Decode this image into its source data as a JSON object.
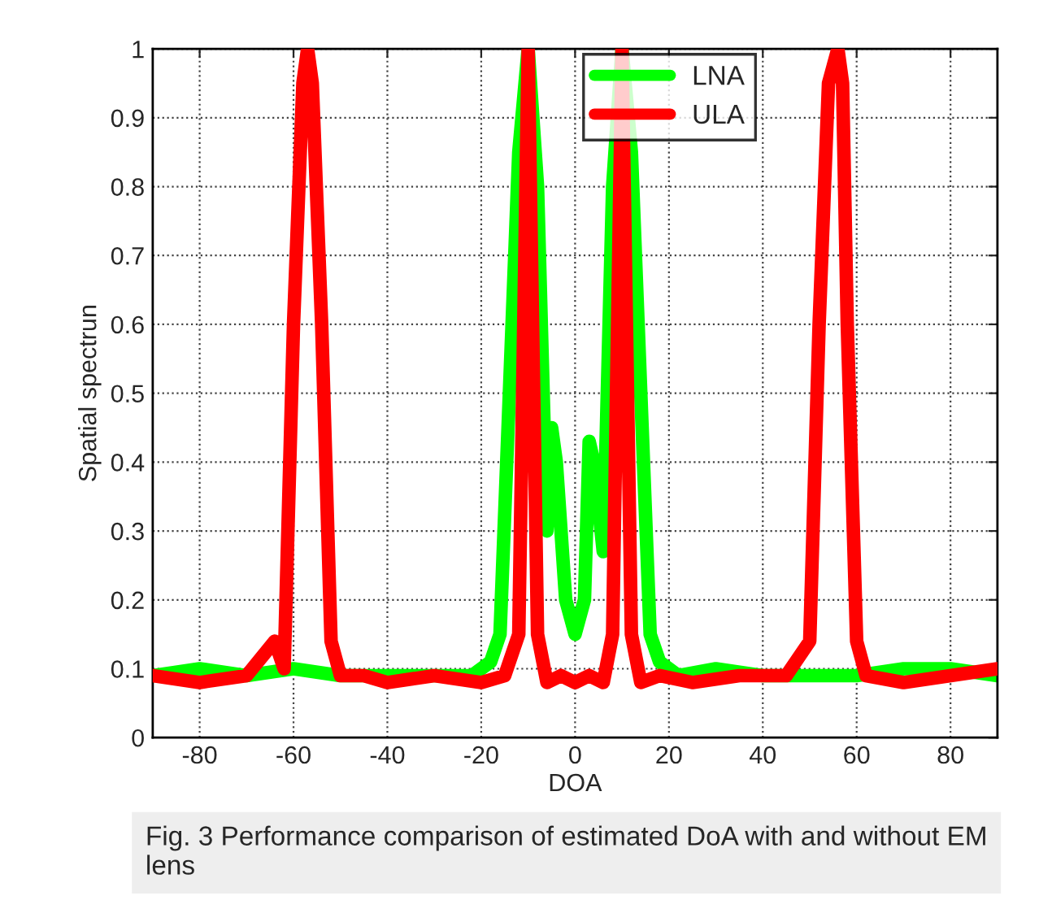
{
  "chart_data": {
    "type": "line",
    "xlabel": "DOA",
    "ylabel": "Spatial spectrun",
    "annotations": [
      "Fig. 3 Performance comparison of estimated DoA with and without EM lens"
    ],
    "xlim": [
      -90,
      90
    ],
    "xticks": [
      -80,
      -60,
      -40,
      -20,
      0,
      20,
      40,
      60,
      80
    ],
    "ylim": [
      0,
      1
    ],
    "yticks": [
      0,
      0.1,
      0.2,
      0.3,
      0.4,
      0.5,
      0.6,
      0.7,
      0.8,
      0.9,
      1
    ],
    "grid": true,
    "legend": "top right",
    "marker": "none",
    "line_style": "solid",
    "series": [
      {
        "name": "LNA",
        "color": "#00ff00",
        "x": [
          -90,
          -80,
          -70,
          -60,
          -50,
          -40,
          -30,
          -22,
          -18,
          -16,
          -14,
          -12,
          -10,
          -8,
          -6,
          -5,
          -4,
          -2,
          0,
          2,
          3,
          4,
          6,
          8,
          10,
          12,
          14,
          16,
          18,
          22,
          30,
          40,
          50,
          60,
          70,
          80,
          90
        ],
        "values": [
          0.09,
          0.1,
          0.09,
          0.1,
          0.09,
          0.09,
          0.09,
          0.09,
          0.11,
          0.15,
          0.5,
          0.85,
          1,
          0.8,
          0.3,
          0.45,
          0.4,
          0.2,
          0.15,
          0.2,
          0.43,
          0.4,
          0.27,
          0.8,
          1,
          0.85,
          0.5,
          0.15,
          0.11,
          0.09,
          0.1,
          0.09,
          0.09,
          0.09,
          0.1,
          0.1,
          0.09
        ]
      },
      {
        "name": "ULA",
        "color": "#ff0000",
        "x": [
          -90,
          -80,
          -70,
          -64,
          -62,
          -60,
          -58,
          -57,
          -56,
          -54,
          -52,
          -50,
          -45,
          -40,
          -30,
          -20,
          -15,
          -12,
          -10,
          -8,
          -6,
          -3,
          0,
          3,
          6,
          8,
          10,
          12,
          14,
          18,
          25,
          35,
          45,
          50,
          52,
          54,
          56,
          57,
          58,
          60,
          62,
          70,
          80,
          90
        ],
        "values": [
          0.09,
          0.08,
          0.09,
          0.14,
          0.1,
          0.6,
          0.95,
          1,
          0.95,
          0.6,
          0.14,
          0.09,
          0.09,
          0.08,
          0.09,
          0.08,
          0.09,
          0.15,
          1,
          0.15,
          0.08,
          0.09,
          0.08,
          0.09,
          0.08,
          0.15,
          1,
          0.15,
          0.08,
          0.09,
          0.08,
          0.09,
          0.09,
          0.14,
          0.6,
          0.95,
          1,
          0.95,
          0.6,
          0.14,
          0.09,
          0.08,
          0.09,
          0.1
        ]
      }
    ]
  }
}
